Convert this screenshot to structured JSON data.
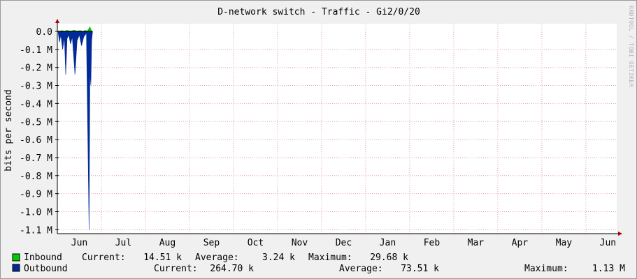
{
  "colors": {
    "background": "#f0f0f0",
    "canvas": "#ffffff",
    "grid": "#e6a0a0",
    "axis": "#000000",
    "arrow": "#aa0000",
    "inbound": "#00cc00",
    "outbound": "#002a97"
  },
  "chart_data": {
    "type": "area",
    "title": "D-network switch - Traffic - Gi2/0/20",
    "ylabel": "bits per second",
    "watermark": "RRDTOOL / TOBI OETIKER",
    "ylim": [
      -1.12,
      0.02
    ],
    "y_ticks": [
      {
        "value": 0.0,
        "label": "0.0"
      },
      {
        "value": -0.1,
        "label": "-0.1 M"
      },
      {
        "value": -0.2,
        "label": "-0.2 M"
      },
      {
        "value": -0.3,
        "label": "-0.3 M"
      },
      {
        "value": -0.4,
        "label": "-0.4 M"
      },
      {
        "value": -0.5,
        "label": "-0.5 M"
      },
      {
        "value": -0.6,
        "label": "-0.6 M"
      },
      {
        "value": -0.7,
        "label": "-0.7 M"
      },
      {
        "value": -0.8,
        "label": "-0.8 M"
      },
      {
        "value": -0.9,
        "label": "-0.9 M"
      },
      {
        "value": -1.0,
        "label": "-1.0 M"
      },
      {
        "value": -1.1,
        "label": "-1.1 M"
      }
    ],
    "xlim": [
      0,
      12.7
    ],
    "x_ticks": [
      {
        "value": 0.5,
        "label": "Jun"
      },
      {
        "value": 1.5,
        "label": "Jul"
      },
      {
        "value": 2.5,
        "label": "Aug"
      },
      {
        "value": 3.5,
        "label": "Sep"
      },
      {
        "value": 4.5,
        "label": "Oct"
      },
      {
        "value": 5.5,
        "label": "Nov"
      },
      {
        "value": 6.5,
        "label": "Dec"
      },
      {
        "value": 7.5,
        "label": "Jan"
      },
      {
        "value": 8.5,
        "label": "Feb"
      },
      {
        "value": 9.5,
        "label": "Mar"
      },
      {
        "value": 10.5,
        "label": "Apr"
      },
      {
        "value": 11.5,
        "label": "May"
      },
      {
        "value": 12.5,
        "label": "Jun"
      }
    ],
    "month_gridlines": [
      1.0,
      2.0,
      3.0,
      4.0,
      5.0,
      6.0,
      7.0,
      8.0,
      9.0,
      10.0,
      11.0,
      12.0
    ],
    "series": [
      {
        "name": "Inbound",
        "points": [
          [
            0.02,
            0.004
          ],
          [
            0.05,
            0.0
          ],
          [
            0.1,
            0.005
          ],
          [
            0.16,
            0.001
          ],
          [
            0.22,
            0.006
          ],
          [
            0.3,
            0.002
          ],
          [
            0.38,
            0.007
          ],
          [
            0.45,
            0.002
          ],
          [
            0.52,
            0.005
          ],
          [
            0.58,
            0.0
          ],
          [
            0.63,
            0.006
          ],
          [
            0.68,
            0.002
          ],
          [
            0.74,
            0.025
          ],
          [
            0.78,
            0.003
          ]
        ]
      },
      {
        "name": "Outbound",
        "points": [
          [
            0.02,
            -0.01
          ],
          [
            0.05,
            -0.06
          ],
          [
            0.08,
            -0.02
          ],
          [
            0.12,
            -0.1
          ],
          [
            0.16,
            -0.03
          ],
          [
            0.19,
            -0.24
          ],
          [
            0.22,
            -0.04
          ],
          [
            0.26,
            -0.02
          ],
          [
            0.3,
            -0.07
          ],
          [
            0.34,
            -0.03
          ],
          [
            0.4,
            -0.24
          ],
          [
            0.45,
            -0.05
          ],
          [
            0.5,
            -0.02
          ],
          [
            0.55,
            -0.08
          ],
          [
            0.6,
            -0.03
          ],
          [
            0.66,
            -0.01
          ],
          [
            0.72,
            -1.1
          ],
          [
            0.74,
            -0.22
          ],
          [
            0.76,
            -0.3
          ],
          [
            0.78,
            -0.05
          ],
          [
            0.8,
            0.0
          ]
        ]
      }
    ],
    "legend": [
      {
        "name": "Inbound",
        "current_label": "Current:",
        "current": "14.51 k",
        "average_label": "Average:",
        "average": "3.24 k",
        "maximum_label": "Maximum:",
        "maximum": "29.68 k"
      },
      {
        "name": "Outbound",
        "current_label": "Current:",
        "current": "264.70 k",
        "average_label": "Average:",
        "average": "73.51 k",
        "maximum_label": "Maximum:",
        "maximum": "1.13 M"
      }
    ]
  }
}
